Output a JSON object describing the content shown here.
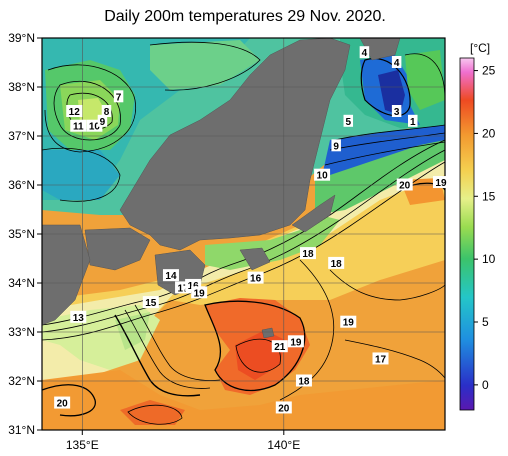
{
  "title": "Daily 200m temperatures 29 Nov. 2020.",
  "map": {
    "lat_range": [
      31,
      39
    ],
    "lon_range": [
      134,
      144
    ],
    "lat_ticks": [
      {
        "value": 39,
        "label": "39°N"
      },
      {
        "value": 38,
        "label": "38°N"
      },
      {
        "value": 37,
        "label": "37°N"
      },
      {
        "value": 36,
        "label": "36°N"
      },
      {
        "value": 35,
        "label": "35°N"
      },
      {
        "value": 34,
        "label": "34°N"
      },
      {
        "value": 33,
        "label": "33°N"
      },
      {
        "value": 32,
        "label": "32°N"
      },
      {
        "value": 31,
        "label": "31°N"
      }
    ],
    "lon_ticks": [
      {
        "value": 135,
        "label": "135°E"
      },
      {
        "value": 140,
        "label": "140°E"
      }
    ],
    "contour_labels": [
      {
        "text": "12",
        "lon": 134.8,
        "lat": 37.5
      },
      {
        "text": "11",
        "lon": 134.9,
        "lat": 37.2
      },
      {
        "text": "10",
        "lon": 135.3,
        "lat": 37.2
      },
      {
        "text": "9",
        "lon": 135.5,
        "lat": 37.3
      },
      {
        "text": "8",
        "lon": 135.6,
        "lat": 37.5
      },
      {
        "text": "7",
        "lon": 135.9,
        "lat": 37.8
      },
      {
        "text": "4",
        "lon": 142.0,
        "lat": 38.7
      },
      {
        "text": "4",
        "lon": 142.8,
        "lat": 38.5
      },
      {
        "text": "3",
        "lon": 142.8,
        "lat": 37.5
      },
      {
        "text": "1",
        "lon": 143.2,
        "lat": 37.3
      },
      {
        "text": "5",
        "lon": 141.6,
        "lat": 37.3
      },
      {
        "text": "9",
        "lon": 141.3,
        "lat": 36.8
      },
      {
        "text": "10",
        "lon": 140.95,
        "lat": 36.2
      },
      {
        "text": "20",
        "lon": 143.0,
        "lat": 36.0
      },
      {
        "text": "19",
        "lon": 143.9,
        "lat": 36.05
      },
      {
        "text": "18",
        "lon": 140.6,
        "lat": 34.6
      },
      {
        "text": "18",
        "lon": 141.3,
        "lat": 34.4
      },
      {
        "text": "14",
        "lon": 137.2,
        "lat": 34.15
      },
      {
        "text": "17",
        "lon": 137.5,
        "lat": 33.9
      },
      {
        "text": "16",
        "lon": 137.75,
        "lat": 33.95
      },
      {
        "text": "19",
        "lon": 137.9,
        "lat": 33.8
      },
      {
        "text": "16",
        "lon": 139.3,
        "lat": 34.1
      },
      {
        "text": "15",
        "lon": 136.7,
        "lat": 33.6
      },
      {
        "text": "13",
        "lon": 134.9,
        "lat": 33.3
      },
      {
        "text": "19",
        "lon": 141.6,
        "lat": 33.2
      },
      {
        "text": "21",
        "lon": 139.9,
        "lat": 32.7
      },
      {
        "text": "19",
        "lon": 140.3,
        "lat": 32.8
      },
      {
        "text": "17",
        "lon": 142.4,
        "lat": 32.45
      },
      {
        "text": "18",
        "lon": 140.5,
        "lat": 32.0
      },
      {
        "text": "20",
        "lon": 134.5,
        "lat": 31.55
      },
      {
        "text": "20",
        "lon": 140.0,
        "lat": 31.45
      }
    ]
  },
  "colorbar": {
    "unit": "[°C]",
    "min": -2,
    "max": 26,
    "ticks": [
      {
        "value": 25,
        "label": "25"
      },
      {
        "value": 20,
        "label": "20"
      },
      {
        "value": 15,
        "label": "15"
      },
      {
        "value": 10,
        "label": "10"
      },
      {
        "value": 5,
        "label": "5"
      },
      {
        "value": 0,
        "label": "0"
      }
    ]
  },
  "colors": {
    "land": "#6e6e6e",
    "warm": "#f28a2a",
    "cold": "#2a2f9e"
  }
}
